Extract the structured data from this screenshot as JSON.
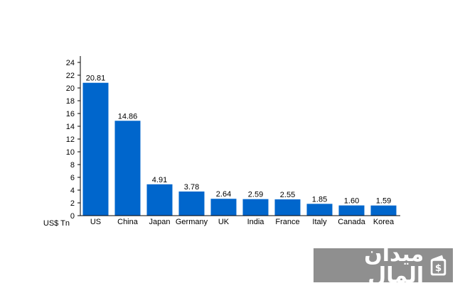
{
  "chart_data": {
    "type": "bar",
    "title": "",
    "xlabel": "",
    "ylabel": "",
    "unit_label": "US$ Tn",
    "categories": [
      "US",
      "China",
      "Japan",
      "Germany",
      "UK",
      "India",
      "France",
      "Italy",
      "Canada",
      "Korea"
    ],
    "values": [
      20.81,
      14.86,
      4.91,
      3.78,
      2.64,
      2.59,
      2.55,
      1.85,
      1.6,
      1.59
    ],
    "value_labels": [
      "20.81",
      "14.86",
      "4.91",
      "3.78",
      "2.64",
      "2.59",
      "2.55",
      "1.85",
      "1.60",
      "1.59"
    ],
    "ylim": [
      0,
      25
    ],
    "yticks": [
      0,
      2,
      4,
      6,
      8,
      10,
      12,
      14,
      16,
      18,
      20,
      22,
      24
    ],
    "grid": false,
    "bar_color": "#0066cc"
  },
  "logo": {
    "text": "ميدان المال",
    "icon": "wallet-dollar-icon",
    "background": "#8f8f8f"
  }
}
